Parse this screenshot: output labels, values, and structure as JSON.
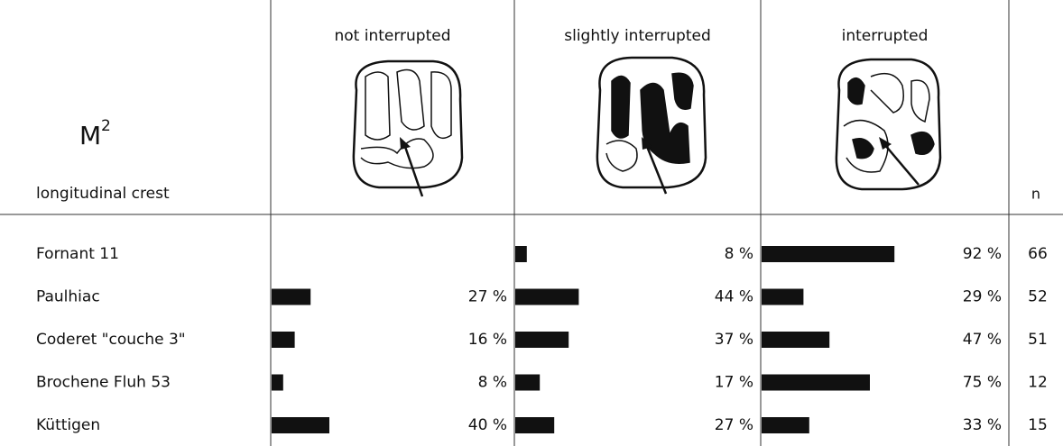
{
  "chart_data": {
    "type": "bar",
    "title": "M",
    "title_sup": "2",
    "subtitle": "longitudinal crest",
    "categories": [
      "Fornant 11",
      "Paulhiac",
      "Coderet \"couche 3\"",
      "Brochene Fluh 53",
      "Küttigen"
    ],
    "series": [
      {
        "name": "not interrupted",
        "color": "#111111",
        "values": [
          null,
          27,
          16,
          8,
          40
        ],
        "value_labels": [
          null,
          "27 %",
          "16 %",
          "8 %",
          "40 %"
        ]
      },
      {
        "name": "slightly interrupted",
        "color": "#111111",
        "values": [
          8,
          44,
          37,
          17,
          27
        ],
        "value_labels": [
          "8 %",
          "44 %",
          "37 %",
          "17 %",
          "27 %"
        ]
      },
      {
        "name": "interrupted",
        "color": "#111111",
        "values": [
          92,
          29,
          47,
          75,
          33
        ],
        "value_labels": [
          "92 %",
          "29 %",
          "47 %",
          "75 %",
          "33 %"
        ]
      }
    ],
    "n_label": "n",
    "n": [
      66,
      52,
      51,
      12,
      15
    ]
  }
}
